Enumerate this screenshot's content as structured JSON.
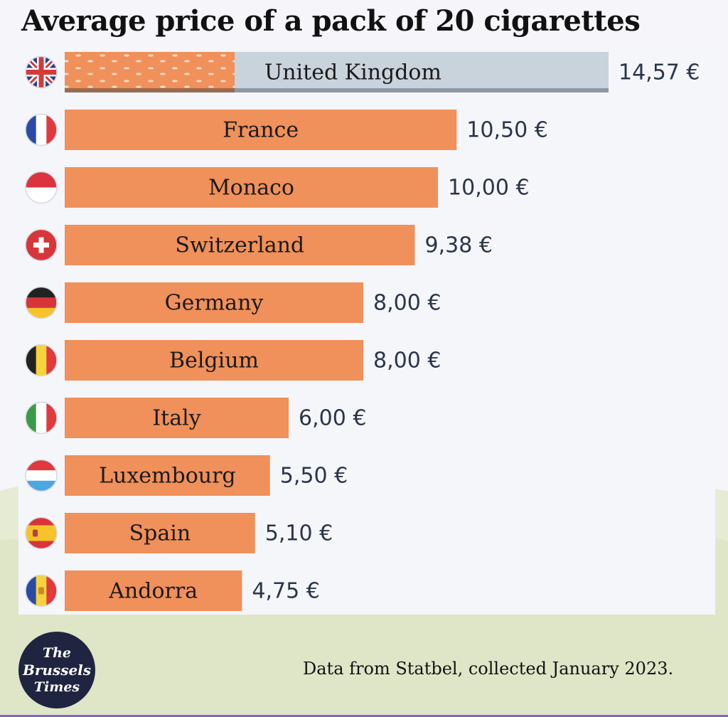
{
  "title": "Average price of a pack of 20 cigarettes",
  "footer": "Data from Statbel, collected January 2023.",
  "logo": {
    "line1": "The",
    "line2": "Brussels",
    "line3": "Times"
  },
  "colors": {
    "bar": "#f0905a",
    "uk_background": "#c9d3dc",
    "value_text": "#2a3548",
    "label_text": "#1a1a1a"
  },
  "chart_data": {
    "type": "bar",
    "orientation": "horizontal",
    "title": "Average price of a pack of 20 cigarettes",
    "categories": [
      "United Kingdom",
      "France",
      "Monaco",
      "Switzerland",
      "Germany",
      "Belgium",
      "Italy",
      "Luxembourg",
      "Spain",
      "Andorra"
    ],
    "values": [
      14.57,
      10.5,
      10.0,
      9.38,
      8.0,
      8.0,
      6.0,
      5.5,
      5.1,
      4.75
    ],
    "value_labels": [
      "14,57 €",
      "10,50 €",
      "10,00 €",
      "9,38 €",
      "8,00 €",
      "8,00 €",
      "6,00 €",
      "5,50 €",
      "5,10 €",
      "4,75 €"
    ],
    "flags": [
      "uk-flag-icon",
      "france-flag-icon",
      "monaco-flag-icon",
      "switzerland-flag-icon",
      "germany-flag-icon",
      "belgium-flag-icon",
      "italy-flag-icon",
      "luxembourg-flag-icon",
      "spain-flag-icon",
      "andorra-flag-icon"
    ],
    "xlim": [
      0,
      14.57
    ],
    "grid": false,
    "legend": "none"
  }
}
